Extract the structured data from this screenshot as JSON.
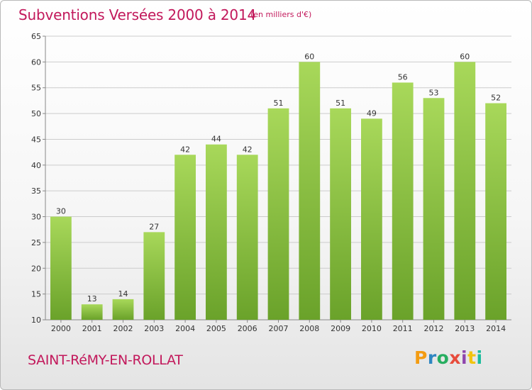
{
  "header": {
    "title": "Subventions Versées 2000 à 2014",
    "subtitle": "(en milliers d'€)"
  },
  "footer": {
    "place": "SAINT-RéMY-EN-ROLLAT",
    "logo_text": "Proxiti",
    "logo_colors": [
      "#f39c12",
      "#2e86c1",
      "#27ae60",
      "#e74c3c",
      "#8e44ad",
      "#f1c40f",
      "#1abc9c"
    ]
  },
  "colors": {
    "bar_light": "#a8d85a",
    "bar_dark": "#6aa22a",
    "grid": "#cccccc",
    "accent": "#c2185b"
  },
  "chart_data": {
    "type": "bar",
    "title": "Subventions Versées 2000 à 2014",
    "subtitle": "(en milliers d'€)",
    "categories": [
      "2000",
      "2001",
      "2002",
      "2003",
      "2004",
      "2005",
      "2006",
      "2007",
      "2008",
      "2009",
      "2010",
      "2011",
      "2012",
      "2013",
      "2014"
    ],
    "values": [
      30,
      13,
      14,
      27,
      42,
      44,
      42,
      51,
      60,
      51,
      49,
      56,
      53,
      60,
      52
    ],
    "ylim": [
      10,
      65
    ],
    "yticks": [
      10,
      15,
      20,
      25,
      30,
      35,
      40,
      45,
      50,
      55,
      60,
      65
    ],
    "grid": "horizontal",
    "legend": "none"
  }
}
